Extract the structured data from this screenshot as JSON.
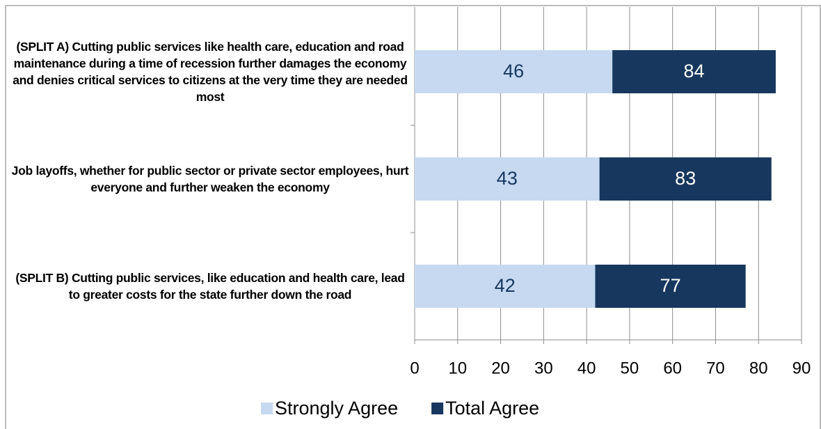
{
  "chart_data": {
    "type": "hbar",
    "categories": [
      "(SPLIT A) Cutting public services like health care, education and road maintenance during a time of recession further damages the economy and denies critical services to citizens at the very time they are needed most",
      "Job layoffs, whether for public sector or private sector employees, hurt everyone and further weaken the economy",
      "(SPLIT B) Cutting public services, like education and health care, lead to greater costs for the state further down the road"
    ],
    "series": [
      {
        "name": "Strongly Agree",
        "color": "#c6d9f1",
        "values": [
          46,
          43,
          42
        ]
      },
      {
        "name": "Total Agree",
        "color": "#17375e",
        "values": [
          84,
          83,
          77
        ]
      }
    ],
    "xlim": [
      0,
      90
    ],
    "xticks": [
      0,
      10,
      20,
      30,
      40,
      50,
      60,
      70,
      80,
      90
    ],
    "grid": true
  }
}
